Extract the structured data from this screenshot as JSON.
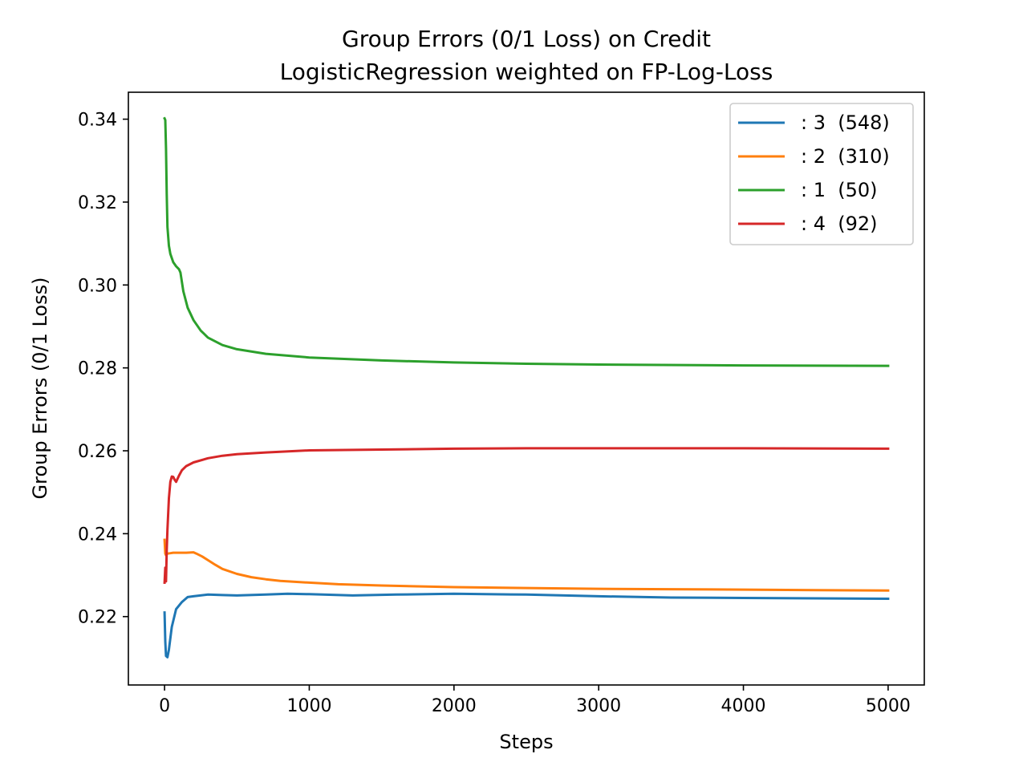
{
  "chart_data": {
    "type": "line",
    "title": "Group Errors (0/1 Loss) on Credit",
    "subtitle": "LogisticRegression weighted on FP-Log-Loss",
    "xlabel": "Steps",
    "ylabel": "Group Errors (0/1 Loss)",
    "xlim": [
      -250,
      5250
    ],
    "ylim": [
      0.2035,
      0.3465
    ],
    "xticks": [
      0,
      1000,
      2000,
      3000,
      4000,
      5000
    ],
    "xtick_labels": [
      "0",
      "1000",
      "2000",
      "3000",
      "4000",
      "5000"
    ],
    "yticks": [
      0.22,
      0.24,
      0.26,
      0.28,
      0.3,
      0.32,
      0.34
    ],
    "ytick_labels": [
      "0.22",
      "0.24",
      "0.26",
      "0.28",
      "0.30",
      "0.32",
      "0.34"
    ],
    "grid": false,
    "legend_position": "top-right",
    "series": [
      {
        "name": ": 3  (548)",
        "color": "#1f77b4",
        "x": [
          0,
          5,
          10,
          20,
          30,
          50,
          80,
          120,
          160,
          200,
          300,
          400,
          500,
          700,
          850,
          1000,
          1300,
          1600,
          2000,
          2500,
          3000,
          3500,
          4000,
          4500,
          5000
        ],
        "y": [
          0.221,
          0.214,
          0.2105,
          0.2102,
          0.212,
          0.2175,
          0.2218,
          0.2235,
          0.2247,
          0.2249,
          0.2253,
          0.2252,
          0.2251,
          0.2253,
          0.2255,
          0.2254,
          0.2251,
          0.2253,
          0.2255,
          0.2253,
          0.2249,
          0.2246,
          0.2245,
          0.2244,
          0.2243
        ]
      },
      {
        "name": ": 2  (310)",
        "color": "#ff7f0e",
        "x": [
          0,
          5,
          10,
          20,
          40,
          60,
          100,
          150,
          200,
          220,
          260,
          300,
          350,
          400,
          500,
          600,
          700,
          800,
          1000,
          1200,
          1500,
          2000,
          2500,
          3000,
          3500,
          4000,
          4500,
          5000
        ],
        "y": [
          0.2385,
          0.2352,
          0.2348,
          0.2352,
          0.2353,
          0.2354,
          0.2354,
          0.2354,
          0.2355,
          0.2352,
          0.2345,
          0.2336,
          0.2325,
          0.2315,
          0.2303,
          0.2295,
          0.229,
          0.2286,
          0.2282,
          0.2278,
          0.2275,
          0.2271,
          0.2269,
          0.2267,
          0.2266,
          0.2265,
          0.2264,
          0.2263
        ]
      },
      {
        "name": ": 1  (50)",
        "color": "#2ca02c",
        "x": [
          0,
          5,
          10,
          15,
          20,
          30,
          40,
          60,
          80,
          100,
          110,
          130,
          160,
          200,
          250,
          300,
          400,
          500,
          700,
          1000,
          1500,
          2000,
          2500,
          3000,
          4000,
          5000
        ],
        "y": [
          0.3402,
          0.3398,
          0.333,
          0.322,
          0.314,
          0.3095,
          0.3075,
          0.3055,
          0.3045,
          0.3038,
          0.303,
          0.2985,
          0.2945,
          0.2915,
          0.289,
          0.2873,
          0.2855,
          0.2845,
          0.2834,
          0.2825,
          0.2818,
          0.2813,
          0.281,
          0.2808,
          0.2806,
          0.2805
        ]
      },
      {
        "name": ": 4  (92)",
        "color": "#d62728",
        "x": [
          0,
          5,
          10,
          15,
          20,
          30,
          40,
          50,
          60,
          70,
          80,
          100,
          120,
          150,
          200,
          300,
          400,
          500,
          700,
          1000,
          1500,
          2000,
          2500,
          3000,
          4000,
          5000
        ],
        "y": [
          0.2282,
          0.2318,
          0.2285,
          0.236,
          0.241,
          0.2485,
          0.2525,
          0.2538,
          0.2537,
          0.253,
          0.2525,
          0.254,
          0.2553,
          0.2563,
          0.2572,
          0.2582,
          0.2588,
          0.2592,
          0.2596,
          0.2601,
          0.2603,
          0.2605,
          0.2606,
          0.2606,
          0.2606,
          0.2605
        ]
      }
    ]
  }
}
